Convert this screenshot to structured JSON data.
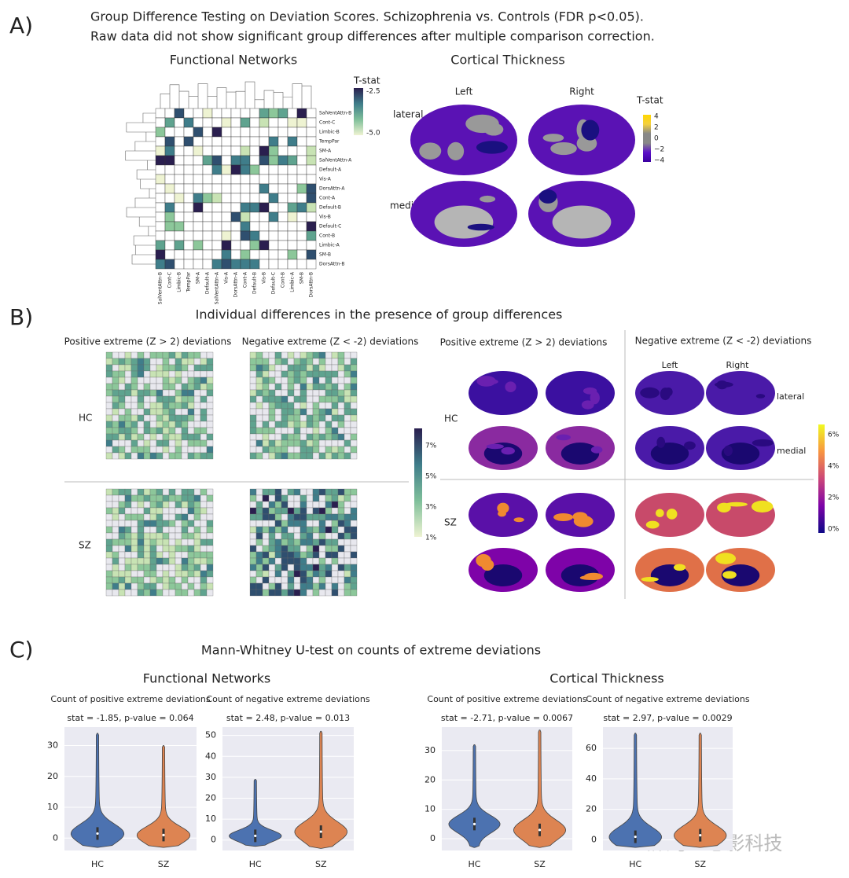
{
  "panel_a": {
    "label": "A)",
    "title_line1": "Group Difference Testing on Deviation Scores. Schizophrenia vs. Controls (FDR p<0.05).",
    "title_line2": "Raw data did not show significant group differences after multiple comparison correction.",
    "fn_title": "Functional Networks",
    "ct_title": "Cortical Thickness",
    "rows": [
      "SalVentAttn-B",
      "Cont-C",
      "Limbic-B",
      "TempPar",
      "SM-A",
      "SalVentAttn-A",
      "Default-A",
      "Vis-A",
      "DorsAttn-A",
      "Cont-A",
      "Default-B",
      "Vis-B",
      "Default-C",
      "Cont-B",
      "Limbic-A",
      "SM-B",
      "DorsAttn-B"
    ],
    "cols": [
      "SalVentAttn-B",
      "Cont-C",
      "Limbic-B",
      "TempPar",
      "SM-A",
      "Default-A",
      "SalVentAttn-A",
      "Vis-A",
      "DorsAttn-A",
      "Cont-A",
      "Default-B",
      "Vis-B",
      "Default-C",
      "Cont-B",
      "Limbic-A",
      "SM-B",
      "DorsAttn-B"
    ],
    "fn_cbar_title": "T-stat",
    "fn_cbar_ticks": [
      "-2.5",
      "-5.0"
    ],
    "left": "Left",
    "right": "Right",
    "lateral": "lateral",
    "medial": "medial",
    "ct_cbar_title": "T-stat",
    "ct_cbar_ticks": [
      "4",
      "2",
      "0",
      "−2",
      "−4"
    ]
  },
  "panel_b": {
    "label": "B)",
    "title": "Individual differences in the presence of group differences",
    "fn_pos": "Positive extreme (Z > 2) deviations",
    "fn_neg": "Negative extreme (Z < -2) deviations",
    "ct_pos": "Positive extreme (Z > 2) deviations",
    "ct_neg": "Negative extreme (Z < -2) deviations",
    "hc": "HC",
    "sz": "SZ",
    "hc2": "HC",
    "sz2": "SZ",
    "fn_cbar_ticks": [
      "7%",
      "5%",
      "3%",
      "1%"
    ],
    "left": "Left",
    "right": "Right",
    "lateral": "lateral",
    "medial": "medial",
    "ct_cbar_ticks": [
      "6%",
      "4%",
      "2%",
      "0%"
    ]
  },
  "panel_c": {
    "label": "C)",
    "title": "Mann-Whitney U-test on counts of extreme deviations",
    "fn_title": "Functional Networks",
    "ct_title": "Cortical Thickness"
  },
  "watermark": "公众号 · 思影科技",
  "chart_data": [
    {
      "type": "violin",
      "title": "Count of positive extreme deviations",
      "subtitle": "stat = -1.85, p-value = 0.064",
      "categories": [
        "HC",
        "SZ"
      ],
      "colors": [
        "#4c72b0",
        "#dd8452"
      ],
      "min": [
        -3,
        -3
      ],
      "median": [
        1.5,
        1
      ],
      "max": [
        34,
        30
      ],
      "ylim": [
        -4,
        36
      ],
      "yticks": [
        0,
        10,
        20,
        30
      ],
      "grid": true
    },
    {
      "type": "violin",
      "title": "Count of negative extreme deviations",
      "subtitle": "stat = 2.48, p-value = 0.013",
      "categories": [
        "HC",
        "SZ"
      ],
      "colors": [
        "#4c72b0",
        "#dd8452"
      ],
      "min": [
        -3,
        -4
      ],
      "median": [
        2,
        4
      ],
      "max": [
        29,
        52
      ],
      "ylim": [
        -5,
        54
      ],
      "yticks": [
        0,
        10,
        20,
        30,
        40,
        50
      ],
      "grid": true
    },
    {
      "type": "violin",
      "title": "Count of positive extreme deviations",
      "subtitle": "stat = -2.71, p-value = 0.0067",
      "categories": [
        "HC",
        "SZ"
      ],
      "colors": [
        "#4c72b0",
        "#dd8452"
      ],
      "min": [
        -3,
        -3
      ],
      "median": [
        5,
        3
      ],
      "max": [
        32,
        37
      ],
      "ylim": [
        -4,
        38
      ],
      "yticks": [
        0,
        10,
        20,
        30
      ],
      "grid": true
    },
    {
      "type": "violin",
      "title": "Count of negative extreme deviations",
      "subtitle": "stat = 2.97, p-value = 0.0029",
      "categories": [
        "HC",
        "SZ"
      ],
      "colors": [
        "#4c72b0",
        "#dd8452"
      ],
      "min": [
        -5,
        -5
      ],
      "median": [
        2,
        3
      ],
      "max": [
        70,
        70
      ],
      "ylim": [
        -7,
        74
      ],
      "yticks": [
        0,
        20,
        40,
        60
      ],
      "grid": true
    }
  ]
}
